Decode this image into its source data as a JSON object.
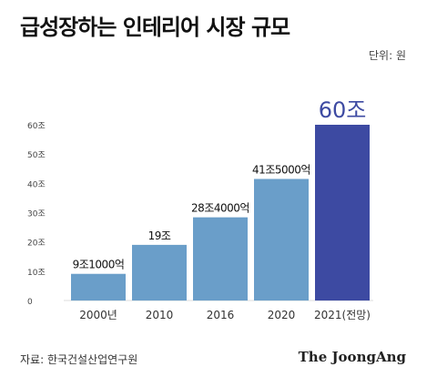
{
  "header": {
    "title": "급성장하는 인테리어 시장 규모",
    "unit": "단위: 원"
  },
  "footer": {
    "source": "자료: 한국건설산업연구원",
    "brand": "The JoongAng"
  },
  "colors": {
    "bar": "#6a9ec9",
    "highlight": "#3d4aa2",
    "axis_text": "#333333",
    "tick_text": "#444444",
    "gridline": "#dddddd"
  },
  "chart_data": {
    "type": "bar",
    "categories": [
      "2000년",
      "2010",
      "2016",
      "2020",
      "2021(전망)"
    ],
    "values": [
      9.1,
      19,
      28.4,
      41.5,
      60
    ],
    "value_labels": [
      "9조1000억",
      "19조",
      "28조4000억",
      "41조5000억",
      "60조"
    ],
    "highlight_index": 4,
    "yticks": [
      0,
      10,
      20,
      30,
      40,
      50,
      60
    ],
    "ytick_labels": [
      "0",
      "10조",
      "20조",
      "30조",
      "40조",
      "50조",
      "60조"
    ],
    "ylim": [
      0,
      60
    ],
    "grid": false,
    "legend": "none"
  }
}
